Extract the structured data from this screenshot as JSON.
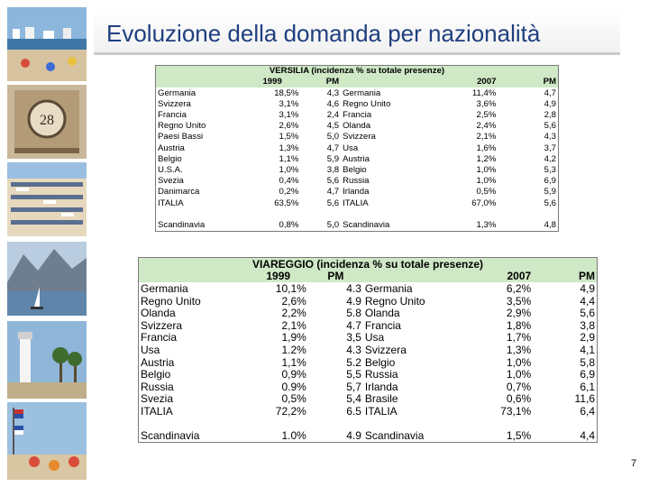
{
  "title": "Evoluzione della domanda per nazionalità",
  "page_number": "7",
  "versilia": {
    "title": "VERSILIA (incidenza % su totale presenze)",
    "year_a": "1999",
    "pm_a": "PM",
    "year_b": "2007",
    "pm_b": "PM",
    "rows": [
      [
        "Germania",
        "18,5%",
        "4,3",
        "Germania",
        "11,4%",
        "4,7"
      ],
      [
        "Svizzera",
        "3,1%",
        "4,6",
        "Regno Unito",
        "3,6%",
        "4,9"
      ],
      [
        "Francia",
        "3,1%",
        "2,4",
        "Francia",
        "2,5%",
        "2,8"
      ],
      [
        "Regno Unito",
        "2,6%",
        "4,5",
        "Olanda",
        "2,4%",
        "5,6"
      ],
      [
        "Paesi Bassi",
        "1,5%",
        "5,0",
        "Svizzera",
        "2,1%",
        "4,3"
      ],
      [
        "Austria",
        "1,3%",
        "4,7",
        "Usa",
        "1,6%",
        "3,7"
      ],
      [
        "Belgio",
        "1,1%",
        "5,9",
        "Austria",
        "1,2%",
        "4,2"
      ],
      [
        "U.S.A.",
        "1,0%",
        "3,8",
        "Belgio",
        "1,0%",
        "5,3"
      ],
      [
        "Svezia",
        "0,4%",
        "5,6",
        "Russia",
        "1,0%",
        "6,9"
      ],
      [
        "Danimarca",
        "0,2%",
        "4,7",
        "Irlanda",
        "0,5%",
        "5,9"
      ],
      [
        "ITALIA",
        "63,5%",
        "5,6",
        "ITALIA",
        "67,0%",
        "5,6"
      ]
    ],
    "footer": [
      "Scandinavia",
      "0,8%",
      "5,0",
      "Scandinavia",
      "1,3%",
      "4,8"
    ]
  },
  "viareggio": {
    "title": "VIAREGGIO (incidenza % su totale presenze)",
    "year_a": "1999",
    "pm_a": "PM",
    "year_b": "2007",
    "pm_b": "PM",
    "rows": [
      [
        "Germania",
        "10,1%",
        "4.3",
        "Germania",
        "6,2%",
        "4,9"
      ],
      [
        "Regno Unito",
        "2,6%",
        "4.9",
        "Regno Unito",
        "3,5%",
        "4,4"
      ],
      [
        "Olanda",
        "2,2%",
        "5.8",
        "Olanda",
        "2,9%",
        "5,6"
      ],
      [
        "Svizzera",
        "2,1%",
        "4.7",
        "Francia",
        "1,8%",
        "3,8"
      ],
      [
        "Francia",
        "1,9%",
        "3,5",
        "Usa",
        "1,7%",
        "2,9"
      ],
      [
        "Usa",
        "1.2%",
        "4.3",
        "Svizzera",
        "1,3%",
        "4,1"
      ],
      [
        "Austria",
        "1,1%",
        "5.2",
        "Belgio",
        "1,0%",
        "5,8"
      ],
      [
        "Belgio",
        "0,9%",
        "5,5",
        "Russia",
        "1,0%",
        "6,9"
      ],
      [
        "Russia",
        "0.9%",
        "5,7",
        "Irlanda",
        "0,7%",
        "6,1"
      ],
      [
        "Svezia",
        "0,5%",
        "5,4",
        "Brasile",
        "0,6%",
        "11,6"
      ],
      [
        "ITALIA",
        "72,2%",
        "6.5",
        "ITALIA",
        "73,1%",
        "6,4"
      ]
    ],
    "footer": [
      "Scandinavia",
      "1.0%",
      "4.9",
      "Scandinavia",
      "1,5%",
      "4,4"
    ]
  }
}
